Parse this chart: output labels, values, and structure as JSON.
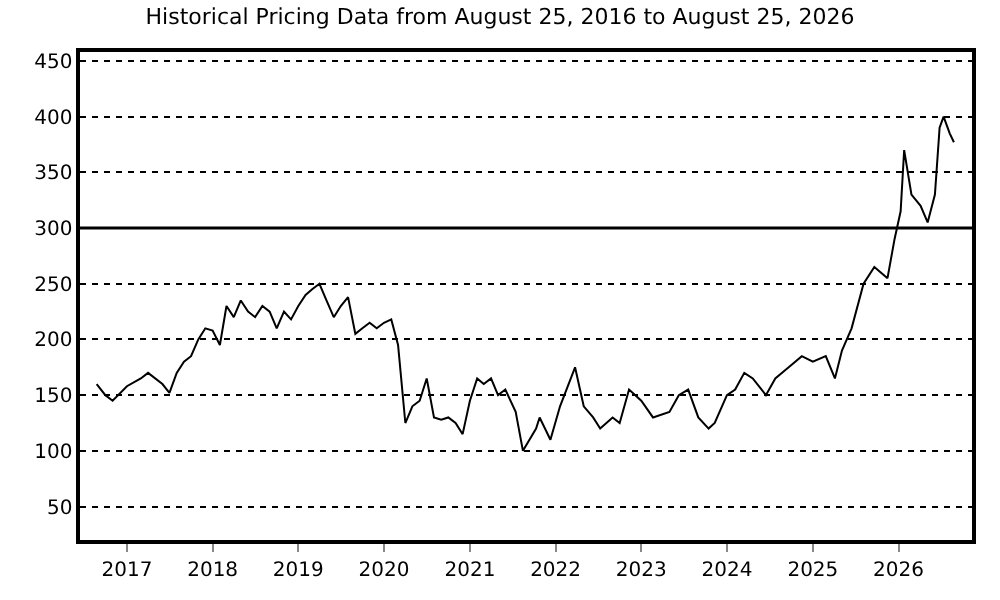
{
  "chart_data": {
    "type": "line",
    "title": "Historical Pricing Data from August 25, 2016 to August 25, 2026",
    "x": [
      "2016-08-25",
      "2016-10-01",
      "2016-11-01",
      "2017-01-01",
      "2017-03-01",
      "2017-04-01",
      "2017-06-01",
      "2017-07-01",
      "2017-08-01",
      "2017-09-01",
      "2017-10-01",
      "2017-11-01",
      "2017-12-01",
      "2018-01-01",
      "2018-02-01",
      "2018-03-01",
      "2018-04-01",
      "2018-05-01",
      "2018-06-01",
      "2018-07-01",
      "2018-08-01",
      "2018-09-01",
      "2018-10-01",
      "2018-11-01",
      "2018-12-01",
      "2019-01-01",
      "2019-02-01",
      "2019-03-01",
      "2019-04-01",
      "2019-05-01",
      "2019-06-01",
      "2019-07-01",
      "2019-08-01",
      "2019-09-01",
      "2019-10-01",
      "2019-11-01",
      "2019-12-01",
      "2020-01-01",
      "2020-02-01",
      "2020-03-01",
      "2020-04-01",
      "2020-05-01",
      "2020-06-01",
      "2020-07-01",
      "2020-08-01",
      "2020-09-01",
      "2020-10-01",
      "2020-11-01",
      "2020-12-01",
      "2021-01-01",
      "2021-02-01",
      "2021-03-01",
      "2021-04-01",
      "2021-05-01",
      "2021-06-01",
      "2021-07-15",
      "2021-08-15",
      "2021-10-10",
      "2021-10-25",
      "2021-12-10",
      "2022-01-20",
      "2022-03-25",
      "2022-05-01",
      "2022-06-10",
      "2022-07-10",
      "2022-09-01",
      "2022-10-01",
      "2022-11-10",
      "2023-01-01",
      "2023-02-20",
      "2023-05-01",
      "2023-06-10",
      "2023-07-20",
      "2023-09-01",
      "2023-10-15",
      "2023-11-10",
      "2024-01-01",
      "2024-02-05",
      "2024-03-15",
      "2024-04-20",
      "2024-06-15",
      "2024-07-25",
      "2024-09-20",
      "2024-11-15",
      "2025-01-01",
      "2025-02-25",
      "2025-04-05",
      "2025-05-05",
      "2025-06-15",
      "2025-08-05",
      "2025-09-20",
      "2025-11-15",
      "2025-12-15",
      "2026-01-10",
      "2026-01-25",
      "2026-02-25",
      "2026-04-05",
      "2026-05-05",
      "2026-06-05",
      "2026-06-25",
      "2026-07-12",
      "2026-08-07",
      "2026-08-25"
    ],
    "values": [
      160,
      150,
      145,
      158,
      165,
      170,
      160,
      152,
      170,
      180,
      185,
      200,
      210,
      208,
      195,
      230,
      220,
      235,
      225,
      220,
      230,
      225,
      210,
      225,
      218,
      230,
      240,
      245,
      250,
      235,
      220,
      230,
      238,
      205,
      210,
      215,
      210,
      215,
      218,
      195,
      125,
      140,
      145,
      165,
      130,
      128,
      130,
      125,
      115,
      145,
      165,
      160,
      165,
      150,
      155,
      135,
      100,
      120,
      130,
      110,
      140,
      175,
      140,
      130,
      120,
      130,
      125,
      155,
      145,
      130,
      135,
      150,
      155,
      130,
      120,
      125,
      150,
      155,
      170,
      165,
      150,
      165,
      175,
      185,
      180,
      185,
      165,
      190,
      210,
      250,
      265,
      255,
      290,
      315,
      370,
      330,
      320,
      305,
      330,
      390,
      400,
      385,
      377
    ],
    "color": "#000000",
    "xlim": [
      "2016-06-15",
      "2026-11-10"
    ],
    "xticks": [
      {
        "value": "2017-01-01",
        "label": "2017"
      },
      {
        "value": "2018-01-01",
        "label": "2018"
      },
      {
        "value": "2019-01-01",
        "label": "2019"
      },
      {
        "value": "2020-01-01",
        "label": "2020"
      },
      {
        "value": "2021-01-01",
        "label": "2021"
      },
      {
        "value": "2022-01-01",
        "label": "2022"
      },
      {
        "value": "2023-01-01",
        "label": "2023"
      },
      {
        "value": "2024-01-01",
        "label": "2024"
      },
      {
        "value": "2025-01-01",
        "label": "2025"
      },
      {
        "value": "2026-01-01",
        "label": "2026"
      }
    ],
    "ylim": [
      20,
      458
    ],
    "yticks": [
      50,
      100,
      150,
      200,
      250,
      300,
      350,
      400,
      450
    ],
    "grid": "y",
    "line_style": "solid",
    "marker": "none",
    "ref_lines": [
      {
        "axis": "y",
        "value": 300,
        "color": "#000000",
        "line_style": "solid"
      }
    ]
  }
}
